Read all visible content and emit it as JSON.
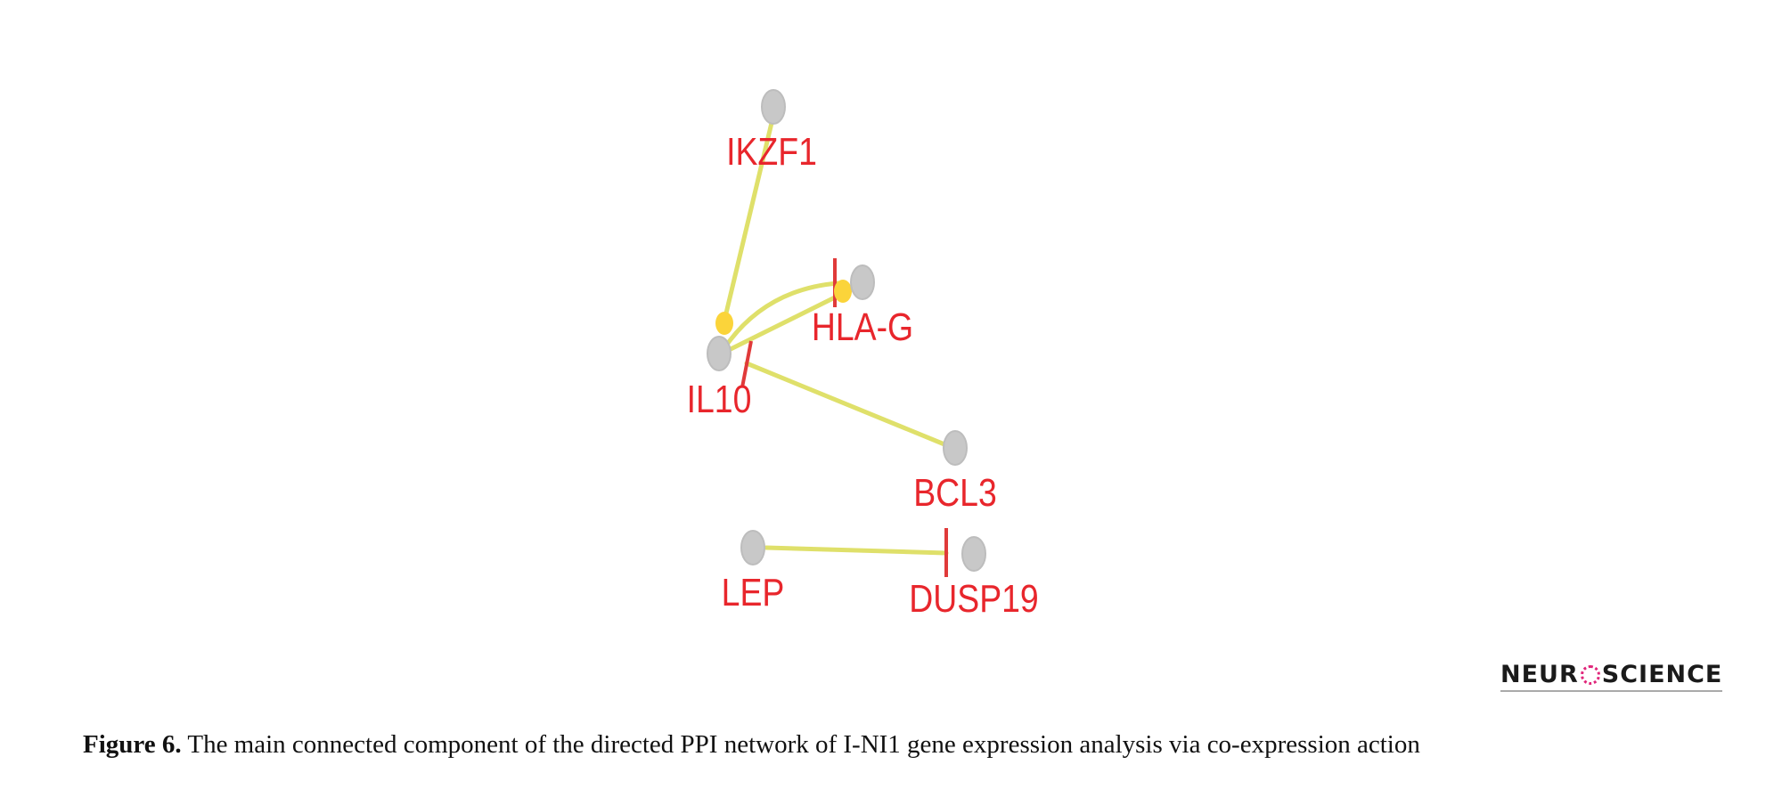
{
  "colors": {
    "node": "#c8c8c8",
    "edge": "#dfe06a",
    "label": "#e8262c",
    "inhibit": "#e03a3a",
    "arrow_dot": "#fbd43a"
  },
  "nodes": [
    {
      "id": "IKZF1",
      "label": "IKZF1"
    },
    {
      "id": "HLA-G",
      "label": "HLA-G"
    },
    {
      "id": "IL10",
      "label": "IL10"
    },
    {
      "id": "BCL3",
      "label": "BCL3"
    },
    {
      "id": "LEP",
      "label": "LEP"
    },
    {
      "id": "DUSP19",
      "label": "DUSP19"
    }
  ],
  "edges": [
    {
      "source": "IKZF1",
      "target": "IL10",
      "type": "activation"
    },
    {
      "source": "IL10",
      "target": "HLA-G",
      "type": "activation"
    },
    {
      "source": "HLA-G",
      "target": "IL10",
      "type": "inhibition"
    },
    {
      "source": "IL10",
      "target": "HLA-G",
      "type": "inhibition"
    },
    {
      "source": "IL10",
      "target": "BCL3",
      "type": "undirected"
    },
    {
      "source": "LEP",
      "target": "DUSP19",
      "type": "inhibition"
    }
  ],
  "caption": {
    "label": "Figure 6.",
    "text": " The main connected component of the directed PPI network of I-NI1 gene expression analysis via co-expression action"
  },
  "logo": {
    "text_left": "NEUR",
    "text_right": "SCIENCE"
  }
}
